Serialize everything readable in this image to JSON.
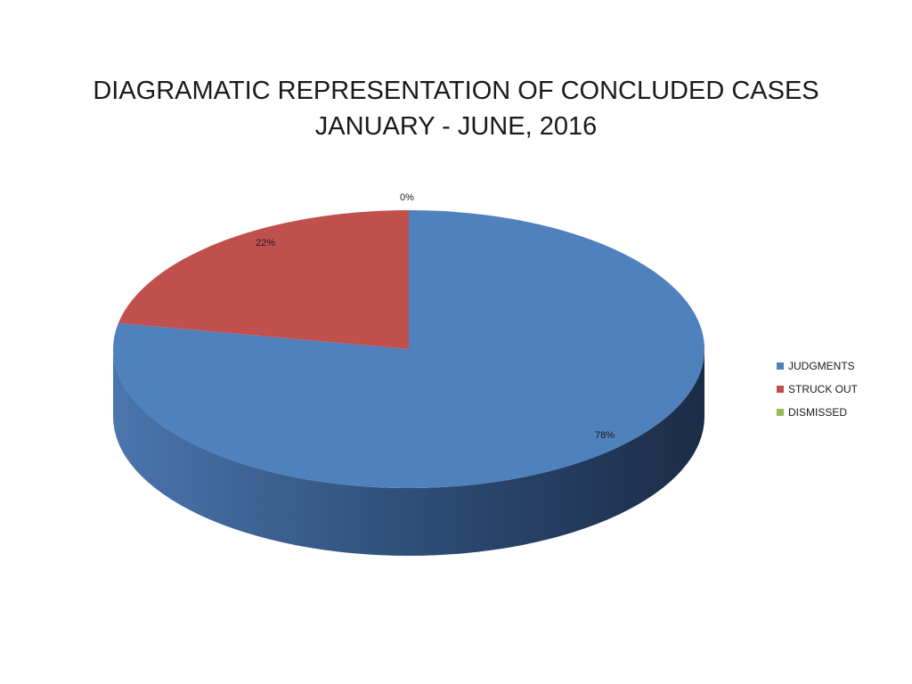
{
  "title": {
    "line1": "DIAGRAMATIC REPRESENTATION OF CONCLUDED CASES",
    "line2": "JANUARY - JUNE, 2016"
  },
  "chart_data": {
    "type": "pie",
    "style": "3d",
    "title": "DIAGRAMATIC REPRESENTATION OF CONCLUDED CASES JANUARY - JUNE, 2016",
    "categories": [
      "JUDGMENTS",
      "STRUCK OUT",
      "DISMISSED"
    ],
    "values": [
      78,
      22,
      0
    ],
    "data_labels": [
      "78%",
      "22%",
      "0%"
    ],
    "colors": [
      "#4F81BD",
      "#C0504D",
      "#9BBB59"
    ],
    "legend_position": "right",
    "grid": false
  }
}
